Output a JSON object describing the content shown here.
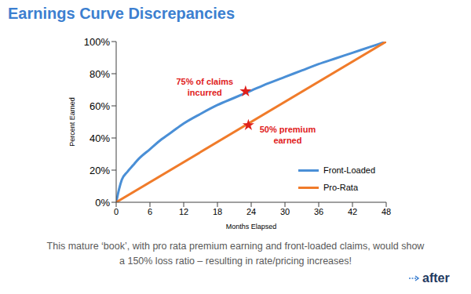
{
  "chart_data": {
    "type": "line",
    "title": "Earnings Curve Discrepancies",
    "x_label": "Months Elapsed",
    "y_label": "Percent Earned",
    "xlim": [
      0,
      48
    ],
    "xticks": [
      0,
      6,
      12,
      18,
      24,
      30,
      36,
      42,
      48
    ],
    "ylim": [
      0,
      100
    ],
    "yticks": [
      {
        "value": 0,
        "label": "0%"
      },
      {
        "value": 20,
        "label": "20%"
      },
      {
        "value": 40,
        "label": "40%"
      },
      {
        "value": 60,
        "label": "60%"
      },
      {
        "value": 80,
        "label": "80%"
      },
      {
        "value": 100,
        "label": "100%"
      }
    ],
    "grid": false,
    "legend": "lower right",
    "series": [
      {
        "name": "Front-Loaded",
        "color": "#4a8fd6",
        "x": [
          0,
          0.5,
          1,
          2,
          3,
          4,
          6,
          8,
          10,
          12,
          15,
          18,
          21,
          24,
          27,
          30,
          33,
          36,
          39,
          42,
          45,
          48
        ],
        "values": [
          0,
          8,
          14,
          19,
          23,
          27,
          33,
          39,
          44,
          49,
          55,
          60.5,
          65,
          69.5,
          74,
          78,
          82,
          86,
          89.5,
          93,
          96.5,
          100
        ]
      },
      {
        "name": "Pro-Rata",
        "color": "#f07b2a",
        "x": [
          0,
          48
        ],
        "values": [
          0,
          100
        ]
      }
    ],
    "annotations": [
      {
        "text": [
          "75% of claims",
          "incurred"
        ],
        "x": 23,
        "y": 69,
        "color": "#e0201b",
        "marker": "star"
      },
      {
        "text": [
          "50% premium",
          "earned"
        ],
        "x": 23.5,
        "y": 48,
        "color": "#e0201b",
        "marker": "star"
      }
    ],
    "caption": [
      "This mature ‘book’, with pro rata premium earning and front-loaded claims, would show",
      "a 150% loss ratio – resulting in rate/pricing increases!"
    ],
    "logo": "after"
  }
}
